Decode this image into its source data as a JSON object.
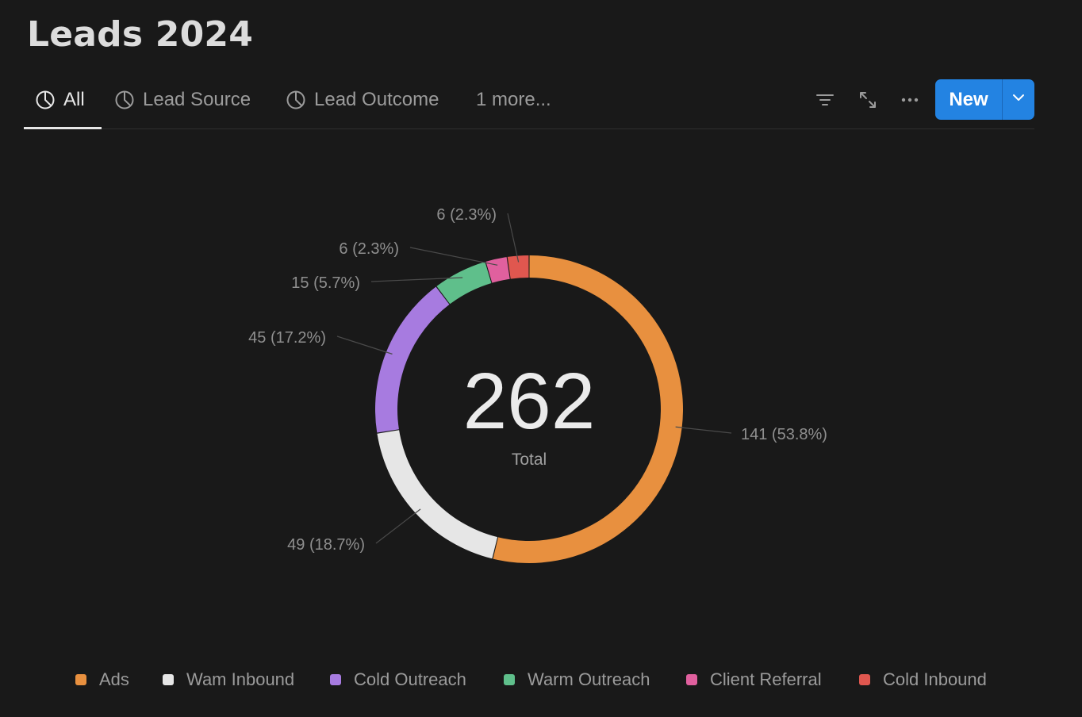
{
  "page": {
    "title": "Leads 2024"
  },
  "tabs": [
    {
      "label": "All",
      "icon": "pie-chart-icon",
      "active": true
    },
    {
      "label": "Lead Source",
      "icon": "pie-chart-icon",
      "active": false
    },
    {
      "label": "Lead Outcome",
      "icon": "pie-chart-icon",
      "active": false
    },
    {
      "label": "1 more...",
      "icon": "",
      "active": false
    }
  ],
  "toolbar": {
    "filter_icon": "filter-icon",
    "expand_icon": "expand-icon",
    "more_icon": "more-icon",
    "new_label": "New",
    "new_dropdown_icon": "chevron-down-icon"
  },
  "chart_data": {
    "type": "pie",
    "variant": "donut",
    "center_value": "262",
    "center_label": "Total",
    "categories": [
      "Ads",
      "Wam Inbound",
      "Cold Outreach",
      "Warm Outreach",
      "Client Referral",
      "Cold Inbound"
    ],
    "values": [
      141,
      49,
      45,
      15,
      6,
      6
    ],
    "data_labels": [
      "141 (53.8%)",
      "49 (18.7%)",
      "45 (17.2%)",
      "15 (5.7%)",
      "6 (2.3%)",
      "6 (2.3%)"
    ],
    "colors": [
      "#e8903f",
      "#e6e6e6",
      "#a77be0",
      "#5fbf8b",
      "#e0609e",
      "#e0574f"
    ],
    "legend_position": "bottom"
  },
  "colors": {
    "background": "#191919",
    "accent": "#2383e2"
  }
}
